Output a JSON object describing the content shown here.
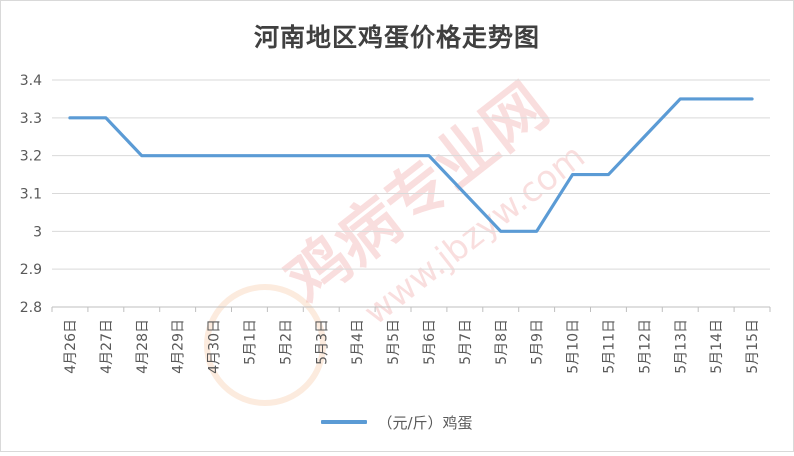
{
  "chart_data": {
    "type": "line",
    "title": "河南地区鸡蛋价格走势图",
    "categories": [
      "4月26日",
      "4月27日",
      "4月28日",
      "4月29日",
      "4月30日",
      "5月1日",
      "5月2日",
      "5月3日",
      "5月4日",
      "5月5日",
      "5月6日",
      "5月7日",
      "5月8日",
      "5月9日",
      "5月10日",
      "5月11日",
      "5月12日",
      "5月13日",
      "5月14日",
      "5月15日"
    ],
    "series": [
      {
        "name": "（元/斤）鸡蛋",
        "values": [
          3.3,
          3.3,
          3.2,
          3.2,
          3.2,
          3.2,
          3.2,
          3.2,
          3.2,
          3.2,
          3.2,
          3.1,
          3.0,
          3.0,
          3.15,
          3.15,
          3.25,
          3.35,
          3.35,
          3.35
        ],
        "color": "#5b9bd5"
      }
    ],
    "yticks": [
      "2.8",
      "2.9",
      "3",
      "3.1",
      "3.2",
      "3.3",
      "3.4"
    ],
    "ylim": [
      2.8,
      3.4
    ],
    "grid": true,
    "legend_position": "bottom"
  },
  "watermark": {
    "brand": "鸡病专业网",
    "url": "www.jbzyw.com"
  }
}
